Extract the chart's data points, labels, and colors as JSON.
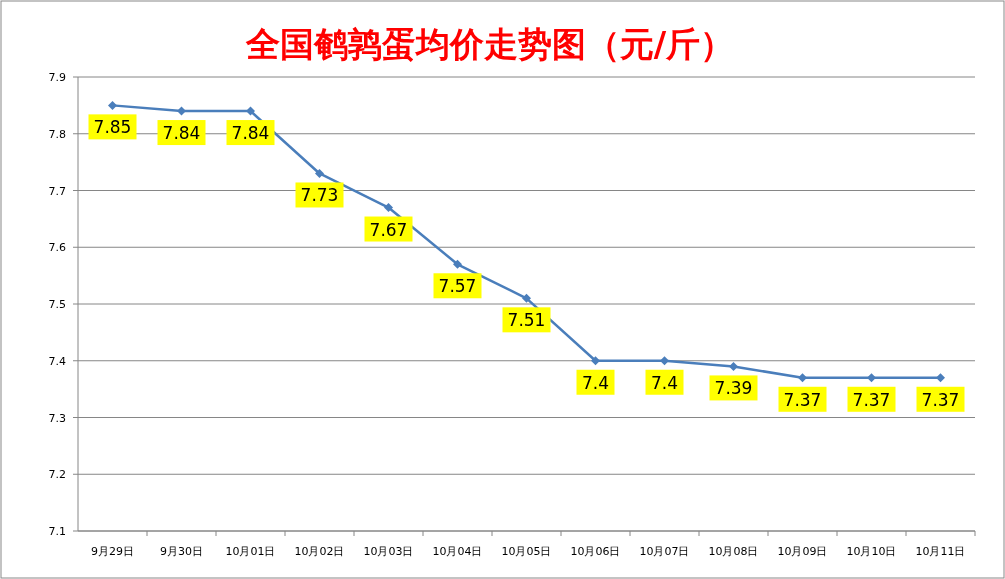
{
  "chart_data": {
    "type": "line",
    "title": "全国鹌鹑蛋均价走势图（元/斤）",
    "categories": [
      "9月29日",
      "9月30日",
      "10月01日",
      "10月02日",
      "10月03日",
      "10月04日",
      "10月05日",
      "10月06日",
      "10月07日",
      "10月08日",
      "10月09日",
      "10月10日",
      "10月11日"
    ],
    "values": [
      7.85,
      7.84,
      7.84,
      7.73,
      7.67,
      7.57,
      7.51,
      7.4,
      7.4,
      7.39,
      7.37,
      7.37,
      7.37
    ],
    "color": "#4a7ebb",
    "ylim": [
      7.1,
      7.9
    ],
    "yticks": [
      7.1,
      7.2,
      7.3,
      7.4,
      7.5,
      7.6,
      7.7,
      7.8,
      7.9
    ],
    "grid": "y",
    "marker": "diamond",
    "line_style": "solid",
    "data_labels": true
  }
}
